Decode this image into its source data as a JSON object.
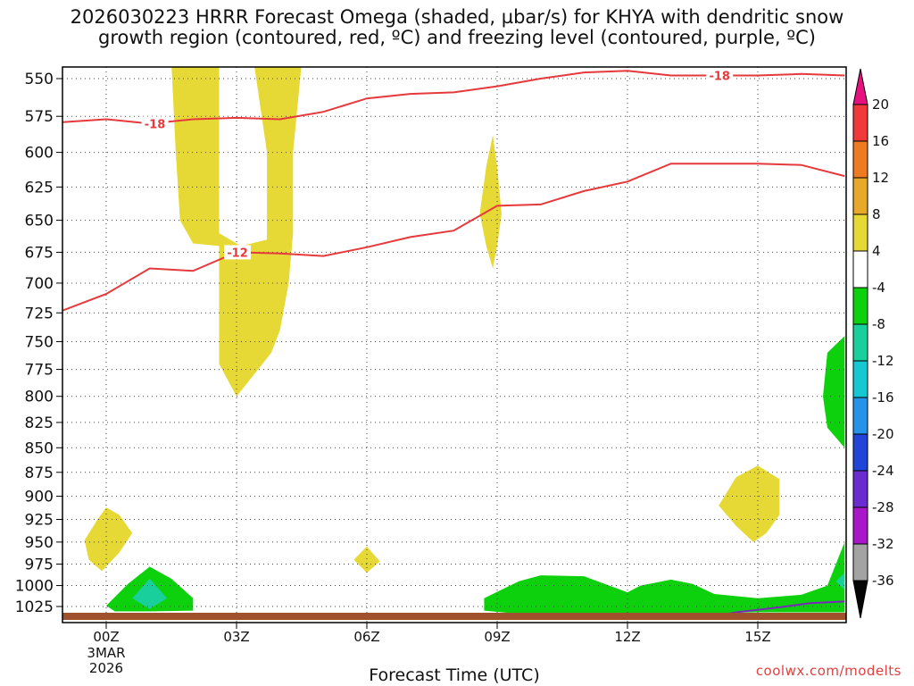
{
  "title_line1": "2026030223 HRRR Forecast Omega (shaded, µbar/s) for KHYA with dendritic snow",
  "title_line2": "growth region (contoured, red, ºC) and freezing level (contoured, purple, ºC)",
  "xaxis_title": "Forecast Time (UTC)",
  "credit": "coolwx.com/modelts",
  "colors": {
    "dgz_contour": "#e6393c",
    "freezing_level": "#7b28b8",
    "ground": "#a0522d",
    "omega_pos_4_8": "#e6d935",
    "omega_neg_4_8": "#0ed10e",
    "omega_neg_8_12": "#19cf9b"
  },
  "chart_data": {
    "type": "heatmap",
    "x_ticks": [
      {
        "hour": 0,
        "label": "00Z",
        "sub": [
          "3MAR",
          "2026"
        ]
      },
      {
        "hour": 3,
        "label": "03Z"
      },
      {
        "hour": 6,
        "label": "06Z"
      },
      {
        "hour": 9,
        "label": "09Z"
      },
      {
        "hour": 12,
        "label": "12Z"
      },
      {
        "hour": 15,
        "label": "15Z"
      }
    ],
    "xlim": [
      -1,
      17
    ],
    "ylim": [
      540,
      1040
    ],
    "y_ticks": [
      550,
      575,
      600,
      625,
      650,
      675,
      700,
      725,
      750,
      775,
      800,
      825,
      850,
      875,
      900,
      925,
      950,
      975,
      1000,
      1025
    ],
    "y_log": true,
    "grid": true,
    "colorbar": {
      "labels": [
        "20",
        "16",
        "12",
        "8",
        "4",
        "-4",
        "-8",
        "-12",
        "-16",
        "-20",
        "-24",
        "-28",
        "-32",
        "-36"
      ],
      "colors": [
        "#e8107f",
        "#f03a3a",
        "#ee7a22",
        "#e8a82a",
        "#e6d935",
        "#ffffff",
        "#0ed10e",
        "#19cf9b",
        "#15c8d2",
        "#2593ea",
        "#2045d8",
        "#6a2bd0",
        "#a818c8",
        "#a3a3a3",
        "#050505"
      ]
    },
    "dgz_contours": [
      {
        "level": "-18",
        "points": [
          [
            -1,
            579
          ],
          [
            0,
            577
          ],
          [
            1,
            580
          ],
          [
            2,
            577
          ],
          [
            3,
            576
          ],
          [
            4,
            577
          ],
          [
            5,
            572
          ],
          [
            6,
            563
          ],
          [
            7,
            560
          ],
          [
            8,
            559
          ],
          [
            9,
            555
          ],
          [
            10,
            550
          ],
          [
            11,
            546
          ],
          [
            12,
            545
          ],
          [
            13,
            548
          ],
          [
            14,
            548
          ],
          [
            15,
            548
          ],
          [
            16,
            547
          ],
          [
            17,
            548
          ]
        ],
        "label_at": {
          "hour": 1.1,
          "p": 580,
          "label": "-18"
        },
        "label_at2": {
          "hour": 14.1,
          "p": 548,
          "label": "-18"
        }
      },
      {
        "level": "-12",
        "points": [
          [
            -1,
            723
          ],
          [
            0,
            709
          ],
          [
            1,
            688
          ],
          [
            2,
            690
          ],
          [
            3,
            675
          ],
          [
            4,
            676
          ],
          [
            5,
            678
          ],
          [
            6,
            671
          ],
          [
            7,
            663
          ],
          [
            8,
            658
          ],
          [
            9,
            639
          ],
          [
            10,
            638
          ],
          [
            11,
            628
          ],
          [
            12,
            621
          ],
          [
            13,
            608
          ],
          [
            14,
            608
          ],
          [
            15,
            608
          ],
          [
            16,
            609
          ],
          [
            17,
            617
          ]
        ],
        "label_at": {
          "hour": 3.0,
          "p": 675,
          "label": "-12"
        }
      }
    ],
    "freezing_level_contour": {
      "level": "0",
      "points": [
        [
          13.6,
          1040
        ],
        [
          14.5,
          1032
        ],
        [
          15.5,
          1026
        ],
        [
          16.2,
          1021
        ],
        [
          17,
          1019
        ]
      ]
    },
    "omega_regions": [
      {
        "class": "4..8",
        "points": [
          [
            1.5,
            540
          ],
          [
            2.6,
            540
          ],
          [
            2.6,
            595
          ],
          [
            2.6,
            660
          ],
          [
            3.1,
            670
          ],
          [
            3.7,
            665
          ],
          [
            3.7,
            600
          ],
          [
            3.4,
            540
          ],
          [
            4.5,
            540
          ],
          [
            4.3,
            600
          ],
          [
            4.3,
            660
          ],
          [
            4.2,
            700
          ],
          [
            4.0,
            740
          ],
          [
            3.8,
            760
          ],
          [
            3.2,
            790
          ],
          [
            3.0,
            800
          ],
          [
            2.6,
            770
          ],
          [
            2.6,
            720
          ],
          [
            2.6,
            670
          ],
          [
            2.0,
            668
          ],
          [
            1.7,
            650
          ],
          [
            1.6,
            600
          ]
        ]
      },
      {
        "class": "4..8",
        "points": [
          [
            8.6,
            645
          ],
          [
            8.75,
            610
          ],
          [
            8.9,
            588
          ],
          [
            9.0,
            610
          ],
          [
            9.1,
            645
          ],
          [
            9.0,
            670
          ],
          [
            8.9,
            688
          ],
          [
            8.75,
            670
          ]
        ]
      },
      {
        "class": "4..8",
        "points": [
          [
            -0.5,
            948
          ],
          [
            -0.2,
            925
          ],
          [
            0,
            912
          ],
          [
            0.3,
            920
          ],
          [
            0.6,
            940
          ],
          [
            0.3,
            962
          ],
          [
            -0.1,
            983
          ],
          [
            -0.4,
            970
          ]
        ]
      },
      {
        "class": "4..8",
        "points": [
          [
            5.7,
            970
          ],
          [
            6.0,
            955
          ],
          [
            6.3,
            972
          ],
          [
            6.0,
            985
          ]
        ]
      },
      {
        "class": "4..8",
        "points": [
          [
            14.1,
            910
          ],
          [
            14.5,
            880
          ],
          [
            15.0,
            868
          ],
          [
            15.5,
            882
          ],
          [
            15.5,
            920
          ],
          [
            15.2,
            940
          ],
          [
            14.9,
            950
          ],
          [
            14.5,
            932
          ]
        ]
      },
      {
        "class": "-4..-8",
        "points": [
          [
            0,
            1024
          ],
          [
            0.5,
            998
          ],
          [
            1.0,
            978
          ],
          [
            1.5,
            992
          ],
          [
            2.0,
            1015
          ],
          [
            2.0,
            1030
          ],
          [
            1.0,
            1031
          ],
          [
            0.2,
            1031
          ]
        ]
      },
      {
        "class": "-4..-8",
        "points": [
          [
            8.7,
            1015
          ],
          [
            9.5,
            995
          ],
          [
            10.0,
            988
          ],
          [
            11,
            989
          ],
          [
            12,
            1008
          ],
          [
            12.3,
            1000
          ],
          [
            13,
            993
          ],
          [
            13.5,
            998
          ],
          [
            14,
            1010
          ],
          [
            15,
            1015
          ],
          [
            16,
            1011
          ],
          [
            16.6,
            1000
          ],
          [
            17,
            950
          ],
          [
            17,
            1032
          ],
          [
            15,
            1032
          ],
          [
            13,
            1034
          ],
          [
            11,
            1034
          ],
          [
            9.5,
            1034
          ],
          [
            8.7,
            1030
          ]
        ]
      },
      {
        "class": "-4..-8",
        "points": [
          [
            17,
            745
          ],
          [
            16.6,
            760
          ],
          [
            16.5,
            800
          ],
          [
            16.6,
            830
          ],
          [
            17,
            850
          ]
        ]
      },
      {
        "class": "-8..-12",
        "points": [
          [
            0.6,
            1015
          ],
          [
            1.0,
            992
          ],
          [
            1.4,
            1015
          ],
          [
            1.0,
            1028
          ]
        ]
      },
      {
        "class": "-8..-12",
        "points": [
          [
            17,
            985
          ],
          [
            16.8,
            995
          ],
          [
            17,
            1005
          ]
        ]
      }
    ]
  }
}
